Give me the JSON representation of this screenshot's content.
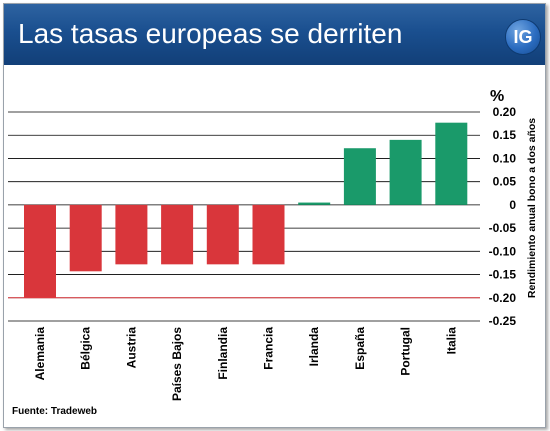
{
  "header": {
    "title": "Las tasas europeas se derriten",
    "logo_text": "IG"
  },
  "source": "Fuente: Tradeweb",
  "chart_data": {
    "type": "bar",
    "unit": "%",
    "ylabel": "Rendimiento anual bono a dos años",
    "ylim": [
      -0.25,
      0.2
    ],
    "yticks": [
      0.2,
      0.15,
      0.1,
      0.05,
      0,
      -0.05,
      -0.1,
      -0.15,
      -0.2,
      -0.25
    ],
    "ytick_labels": [
      "0.20",
      "0.15",
      "0.10",
      "0.05",
      "0",
      "-0.05",
      "-0.10",
      "-0.15",
      "-0.20",
      "-0.25"
    ],
    "grid": true,
    "categories": [
      "Alemania",
      "Bélgica",
      "Austria",
      "Países Bajos",
      "Finlandia",
      "Francia",
      "Irlanda",
      "España",
      "Portugal",
      "Italia"
    ],
    "values": [
      -0.2,
      -0.143,
      -0.128,
      -0.128,
      -0.128,
      -0.128,
      0.005,
      0.122,
      0.14,
      0.177
    ],
    "reference_line": -0.2,
    "colors": {
      "negative": "#d9363b",
      "positive": "#1a9a6a",
      "reference": "#e0393e",
      "grid": "#000000"
    }
  }
}
